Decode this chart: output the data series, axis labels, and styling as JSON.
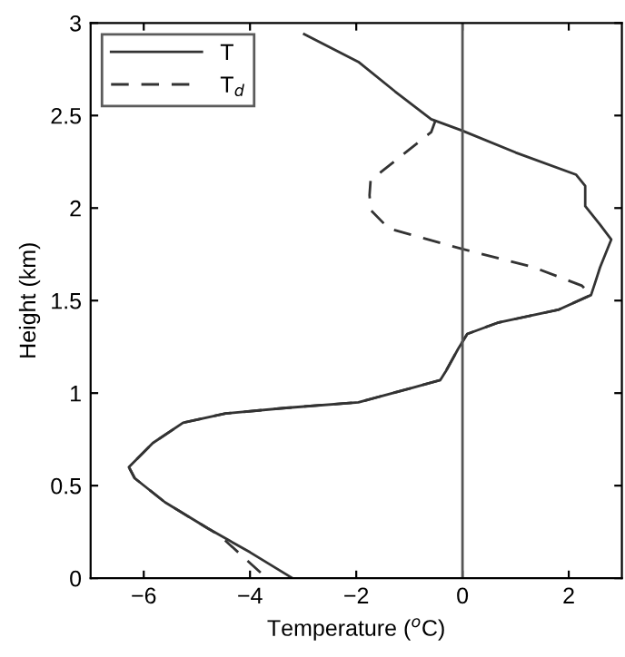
{
  "chart_data": {
    "type": "line",
    "xlabel": "Temperature ($^{o}$C)",
    "ylabel": "Height (km)",
    "xlim": [
      -7,
      3
    ],
    "ylim": [
      0,
      3
    ],
    "xticks": [
      {
        "value": -6,
        "label": "−6"
      },
      {
        "value": -4,
        "label": "−4"
      },
      {
        "value": -2,
        "label": "−2"
      },
      0,
      2
    ],
    "yticks": [
      0,
      0.5,
      1,
      1.5,
      2,
      2.5,
      3
    ],
    "legend": "top left",
    "grid": false,
    "ref_lines": [
      {
        "axis": "x",
        "value": 0,
        "color": "#555555",
        "line_style": "solid"
      }
    ],
    "series": [
      {
        "name": "T",
        "color": "#333333",
        "line_style": "solid",
        "x": [
          -3.2,
          -4.0,
          -4.8,
          -5.6,
          -6.17,
          -6.28,
          -5.83,
          -5.26,
          -4.46,
          -3.32,
          -1.96,
          -0.93,
          -0.42,
          -0.31,
          -0.08,
          0.09,
          0.66,
          1.8,
          2.42,
          2.5,
          2.59,
          2.8,
          2.59,
          2.31,
          2.31,
          2.14,
          1.0,
          -0.02,
          -0.59,
          -1.27,
          -1.96,
          -2.98
        ],
        "values": [
          0,
          0.14,
          0.27,
          0.41,
          0.54,
          0.6,
          0.73,
          0.84,
          0.89,
          0.92,
          0.95,
          1.03,
          1.07,
          1.12,
          1.24,
          1.32,
          1.38,
          1.45,
          1.53,
          1.6,
          1.68,
          1.83,
          1.91,
          2.01,
          2.12,
          2.18,
          2.3,
          2.42,
          2.48,
          2.63,
          2.79,
          2.94
        ]
      },
      {
        "name": "T$_{d}$",
        "color": "#333333",
        "line_style": "dashed",
        "x": [
          -3.8,
          -4.57,
          -4.8,
          -5.6,
          -6.17,
          -6.28,
          -5.83,
          -5.26,
          -4.46,
          -3.32,
          -1.96,
          -0.93,
          -0.42,
          -0.31,
          -0.08,
          0.09,
          0.66,
          1.8,
          2.42,
          2.25,
          1.34,
          -0.02,
          -1.39,
          -1.73,
          -1.75,
          -1.73,
          -1.16,
          -0.59,
          -0.5
        ],
        "values": [
          0.03,
          0.23,
          0.27,
          0.41,
          0.54,
          0.6,
          0.73,
          0.84,
          0.89,
          0.92,
          0.95,
          1.03,
          1.07,
          1.12,
          1.24,
          1.32,
          1.38,
          1.45,
          1.53,
          1.58,
          1.68,
          1.78,
          1.89,
          1.99,
          2.07,
          2.15,
          2.28,
          2.41,
          2.48
        ]
      }
    ]
  }
}
